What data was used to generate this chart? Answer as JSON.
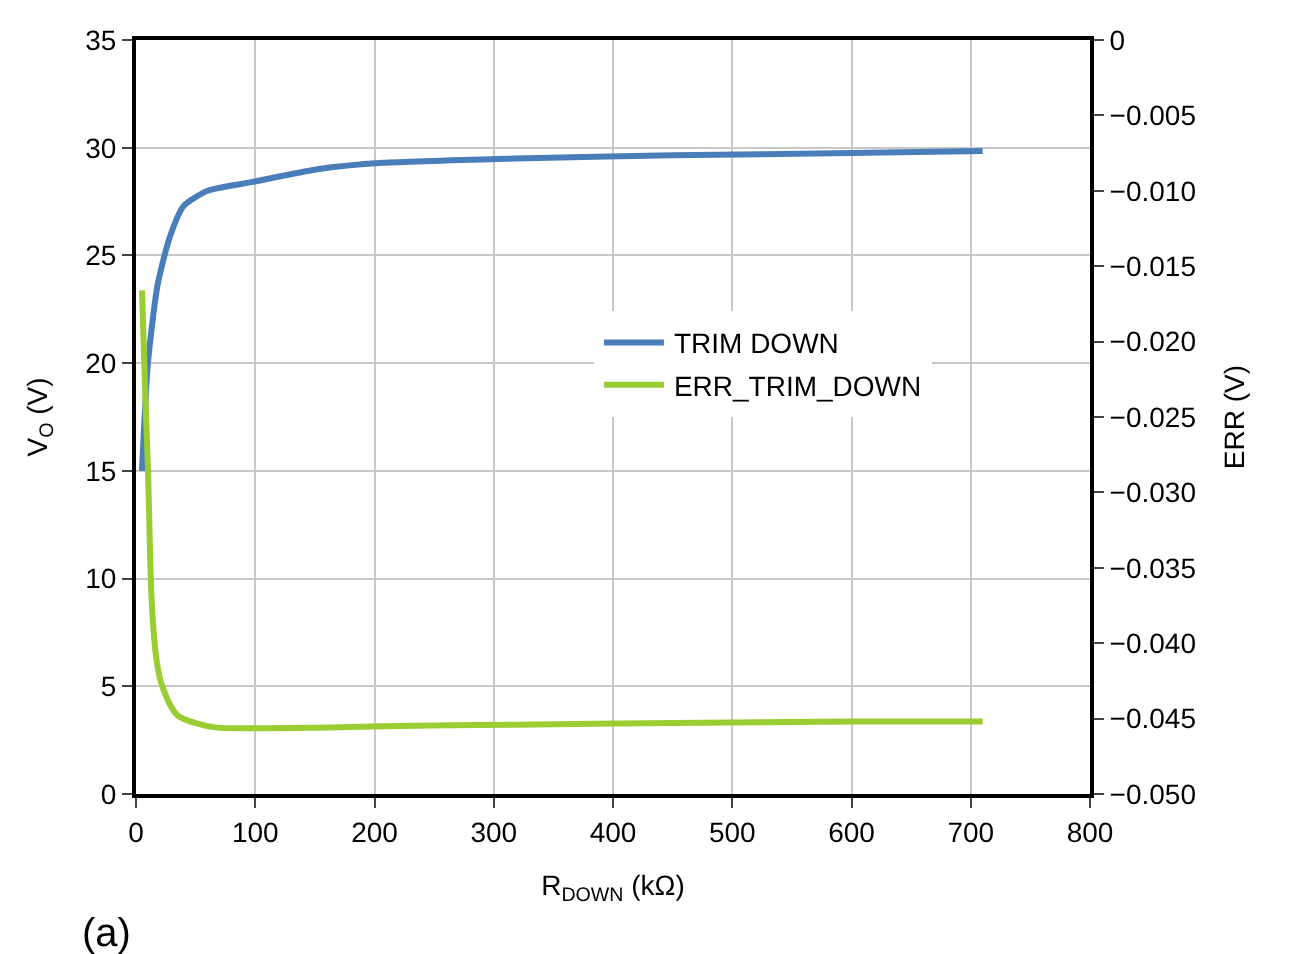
{
  "chart_data": {
    "type": "line",
    "xlabel": "R$_{DOWN}$ (kΩ)",
    "ylabel": "V$_{O}$ (V)",
    "y2label": "ERR (V)",
    "xlim": [
      0,
      800
    ],
    "xticks": [
      0,
      100,
      200,
      300,
      400,
      500,
      600,
      700,
      800
    ],
    "ylim": [
      0,
      35
    ],
    "yticks": [
      0,
      5,
      10,
      15,
      20,
      25,
      30,
      35
    ],
    "y2lim": [
      -0.05,
      0
    ],
    "y2ticks": [
      {
        "value": -0.05,
        "label": "−0.050"
      },
      {
        "value": -0.045,
        "label": "−0.045"
      },
      {
        "value": -0.04,
        "label": "−0.040"
      },
      {
        "value": -0.035,
        "label": "−0.035"
      },
      {
        "value": -0.03,
        "label": "−0.030"
      },
      {
        "value": -0.025,
        "label": "−0.025"
      },
      {
        "value": -0.02,
        "label": "−0.020"
      },
      {
        "value": -0.015,
        "label": "−0.015"
      },
      {
        "value": -0.01,
        "label": "−0.010"
      },
      {
        "value": -0.005,
        "label": "−0.005"
      },
      {
        "value": 0,
        "label": "0"
      }
    ],
    "grid": true,
    "legend": "right",
    "annotations": [
      "(a)"
    ],
    "series": [
      {
        "name": "TRIM DOWN",
        "color": "#4a7ebb",
        "x": [
          5,
          10,
          18,
          28,
          40,
          60,
          97,
          152,
          207,
          318,
          450,
          600,
          710
        ],
        "values": [
          15.0,
          20.0,
          23.6,
          25.8,
          27.3,
          28.0,
          28.4,
          29.0,
          29.3,
          29.5,
          29.65,
          29.75,
          29.85
        ]
      },
      {
        "name": "ERR_TRIM_DOWN",
        "color": "#9acd32",
        "axis": "y2",
        "x": [
          5,
          8,
          10,
          13,
          17,
          21,
          28,
          35,
          50,
          68,
          152,
          207,
          318,
          450,
          600,
          710
        ],
        "values": [
          -0.0166,
          -0.024,
          -0.0283,
          -0.037,
          -0.041,
          -0.0426,
          -0.044,
          -0.0448,
          -0.0453,
          -0.0456,
          -0.0456,
          -0.0455,
          -0.0454,
          -0.0453,
          -0.0452,
          -0.0452
        ]
      }
    ]
  }
}
